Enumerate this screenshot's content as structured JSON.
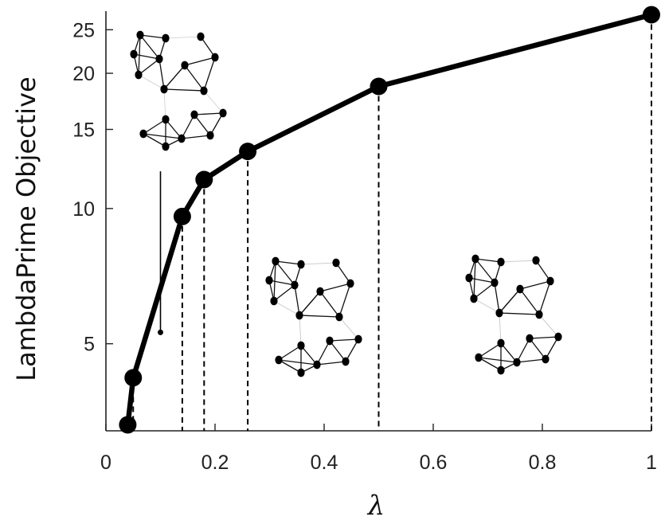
{
  "chart_data": {
    "type": "line",
    "xlabel": "λ",
    "ylabel": "LambdaPrime Objective",
    "xlim": [
      0,
      1
    ],
    "ylim": [
      3.2,
      27.5
    ],
    "xscale": "linear",
    "yscale": "log",
    "xticks": [
      0,
      0.2,
      0.4,
      0.6,
      0.8,
      1
    ],
    "xtick_labels": [
      "0",
      "0.2",
      "0.4",
      "0.6",
      "0.8",
      "1"
    ],
    "yticks": [
      5,
      10,
      15,
      20,
      25
    ],
    "ytick_labels": [
      "5",
      "10",
      "15",
      "20",
      "25"
    ],
    "grid": false,
    "series": [
      {
        "x": [
          0.04,
          0.05,
          0.14,
          0.18,
          0.26,
          0.5,
          1.0
        ],
        "y": [
          3.3,
          4.2,
          9.6,
          11.6,
          13.4,
          18.7,
          27.0
        ]
      }
    ],
    "vertical_markers_x": [
      0.05,
      0.14,
      0.18,
      0.26,
      0.5,
      1.0
    ],
    "annotation_line": {
      "x": 0.1,
      "y_bottom": 5.3,
      "y_top": 12.1
    },
    "colors": {
      "line": "#000000",
      "markers": "#000000",
      "background": "#ffffff"
    }
  }
}
